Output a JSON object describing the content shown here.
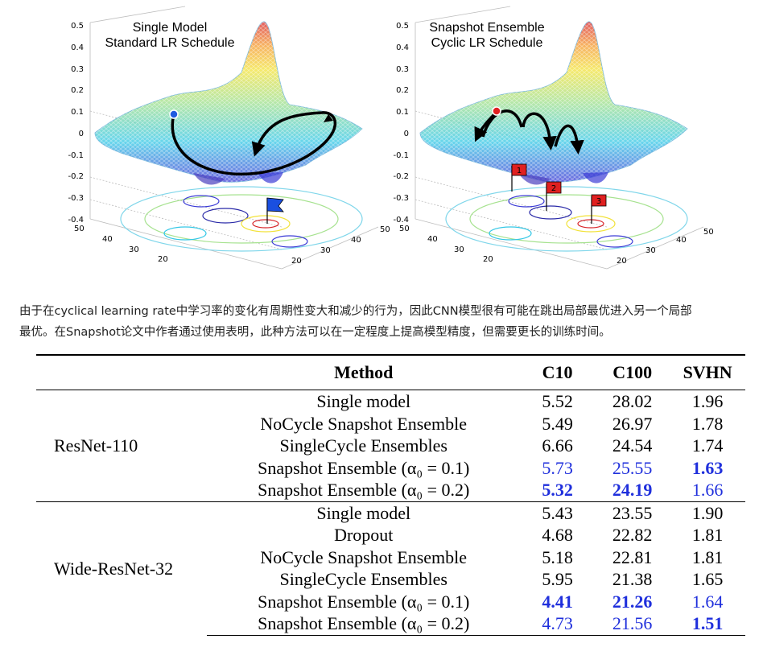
{
  "plots": {
    "left": {
      "title_line1": "Single Model",
      "title_line2": "Standard LR Schedule",
      "z_ticks": [
        "0.5",
        "0.4",
        "0.3",
        "0.2",
        "0.1",
        "0",
        "-0.1",
        "-0.2",
        "-0.3",
        "-0.4"
      ],
      "x_ticks": [
        "50",
        "40",
        "30",
        "20"
      ],
      "y_ticks": [
        "50",
        "40",
        "30",
        "20"
      ]
    },
    "right": {
      "title_line1": "Snapshot Ensemble",
      "title_line2": "Cyclic LR Schedule",
      "z_ticks": [
        "0.5",
        "0.4",
        "0.3",
        "0.2",
        "0.1",
        "0",
        "-0.1",
        "-0.2",
        "-0.3",
        "-0.4"
      ],
      "x_ticks": [
        "50",
        "40",
        "30",
        "20"
      ],
      "y_ticks": [
        "50",
        "40",
        "30",
        "20"
      ],
      "flags": [
        "1",
        "2",
        "3"
      ]
    }
  },
  "caption": {
    "line1": "由于在cyclical learning rate中学习率的变化有周期性变大和减少的行为，因此CNN模型很有可能在跳出局部最优进入另一个局部",
    "line2": "最优。在Snapshot论文中作者通过使用表明，此种方法可以在一定程度上提高模型精度，但需要更长的训练时间。"
  },
  "table": {
    "headers": {
      "method": "Method",
      "c10": "C10",
      "c100": "C100",
      "svhn": "SVHN"
    },
    "groups": [
      {
        "arch": "ResNet-110",
        "rows": [
          {
            "method": "Single model",
            "c10": "5.52",
            "c100": "28.02",
            "svhn": "1.96"
          },
          {
            "method": "NoCycle Snapshot Ensemble",
            "c10": "5.49",
            "c100": "26.97",
            "svhn": "1.78"
          },
          {
            "method": "SingleCycle Ensembles",
            "c10": "6.66",
            "c100": "24.54",
            "svhn": "1.74"
          },
          {
            "method": "Snapshot Ensemble (α₀ = 0.1)",
            "c10": "5.73",
            "c100": "25.55",
            "svhn": "1.63"
          },
          {
            "method": "Snapshot Ensemble (α₀ = 0.2)",
            "c10": "5.32",
            "c100": "24.19",
            "svhn": "1.66"
          }
        ]
      },
      {
        "arch": "Wide-ResNet-32",
        "rows": [
          {
            "method": "Single model",
            "c10": "5.43",
            "c100": "23.55",
            "svhn": "1.90"
          },
          {
            "method": "Dropout",
            "c10": "4.68",
            "c100": "22.82",
            "svhn": "1.81"
          },
          {
            "method": "NoCycle Snapshot Ensemble",
            "c10": "5.18",
            "c100": "22.81",
            "svhn": "1.81"
          },
          {
            "method": "SingleCycle Ensembles",
            "c10": "5.95",
            "c100": "21.38",
            "svhn": "1.65"
          },
          {
            "method": "Snapshot Ensemble (α₀ = 0.1)",
            "c10": "4.41",
            "c100": "21.26",
            "svhn": "1.64"
          },
          {
            "method": "Snapshot Ensemble (α₀ = 0.2)",
            "c10": "4.73",
            "c100": "21.56",
            "svhn": "1.51"
          }
        ]
      }
    ]
  },
  "colors": {
    "highlight_blue": "#1f2fdc"
  }
}
